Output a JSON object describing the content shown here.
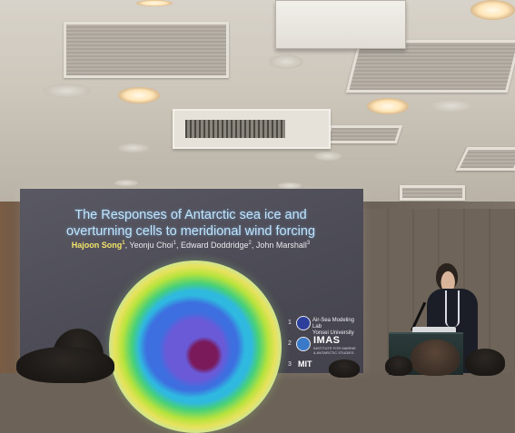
{
  "slide": {
    "title_line1": "The Responses of Antarctic sea ice and",
    "title_line2": "overturning cells to meridional wind forcing",
    "presenter": "Hajoon Song",
    "presenter_sup": "1",
    "coauthors": [
      {
        "name": "Yeonju Choi",
        "sup": "1"
      },
      {
        "name": "Edward Doddridge",
        "sup": "2"
      },
      {
        "name": "John Marshall",
        "sup": "3"
      }
    ],
    "affiliations": [
      {
        "num": "1",
        "lines": [
          "Air-Sea Modeling Lab",
          "Yonsei University"
        ]
      },
      {
        "num": "2",
        "mark": "IMAS",
        "lines": [
          "INSTITUTE FOR MARINE",
          "& ANTARCTIC STUDIES"
        ]
      },
      {
        "num": "3",
        "mark": "MIT"
      }
    ]
  },
  "colors": {
    "title": "#bfe6ff",
    "presenter_name": "#f2e36a",
    "screen": "#4d4c57",
    "ceiling": "#ccc6bb"
  },
  "icons": [
    "ceiling-light-icon",
    "projector-icon",
    "air-conditioner-icon",
    "microphone-icon",
    "laptop-icon",
    "university-emblem-icon"
  ]
}
